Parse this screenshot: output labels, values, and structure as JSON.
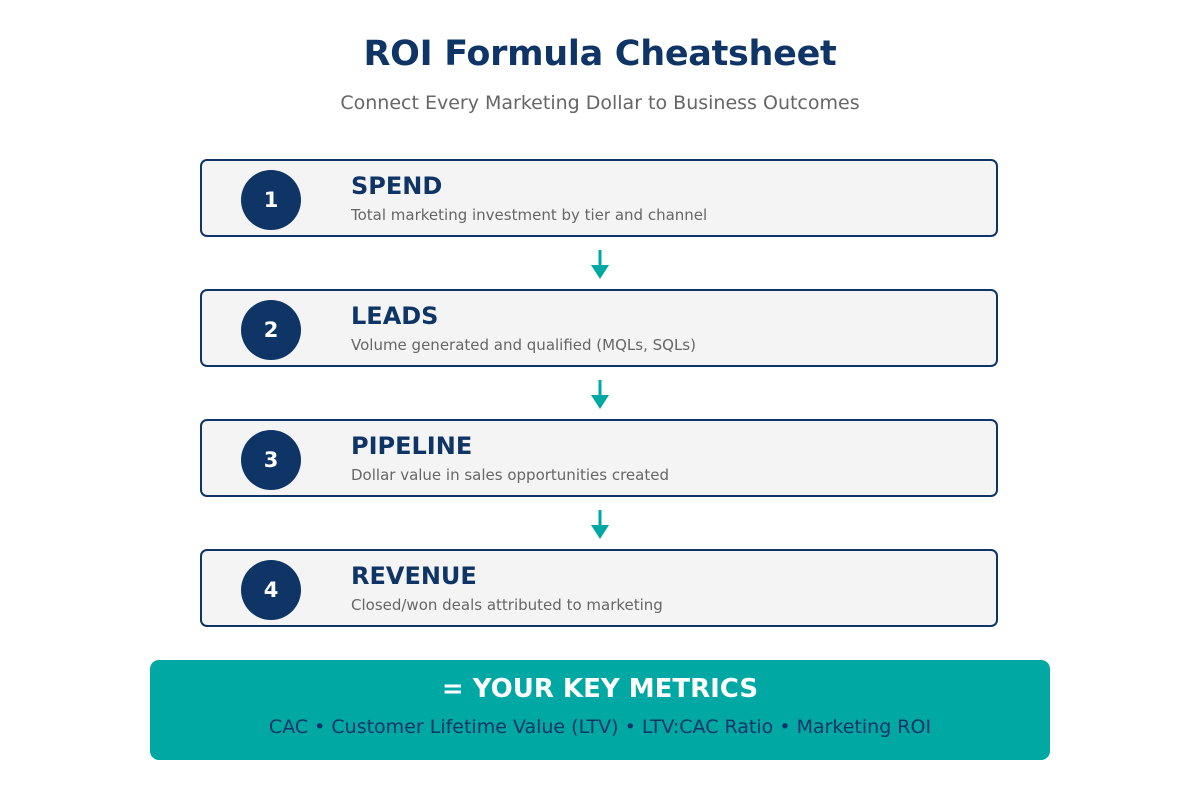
{
  "header": {
    "title": "ROI Formula Cheatsheet",
    "subtitle": "Connect Every Marketing Dollar to Business Outcomes"
  },
  "steps": [
    {
      "number": "1",
      "title": "SPEND",
      "description": "Total marketing investment by tier and channel"
    },
    {
      "number": "2",
      "title": "LEADS",
      "description": "Volume generated and qualified (MQLs, SQLs)"
    },
    {
      "number": "3",
      "title": "PIPELINE",
      "description": "Dollar value in sales opportunities created"
    },
    {
      "number": "4",
      "title": "REVENUE",
      "description": "Closed/won deals attributed to marketing"
    }
  ],
  "result": {
    "title": "= YOUR KEY METRICS",
    "metrics": "CAC • Customer Lifetime Value (LTV) • LTV:CAC Ratio • Marketing ROI"
  },
  "colors": {
    "navy": "#0f3566",
    "teal": "#00a8a4",
    "card_background": "#f4f4f4",
    "muted_text": "#666666"
  },
  "icons": {
    "connector": "arrow-down-icon"
  }
}
